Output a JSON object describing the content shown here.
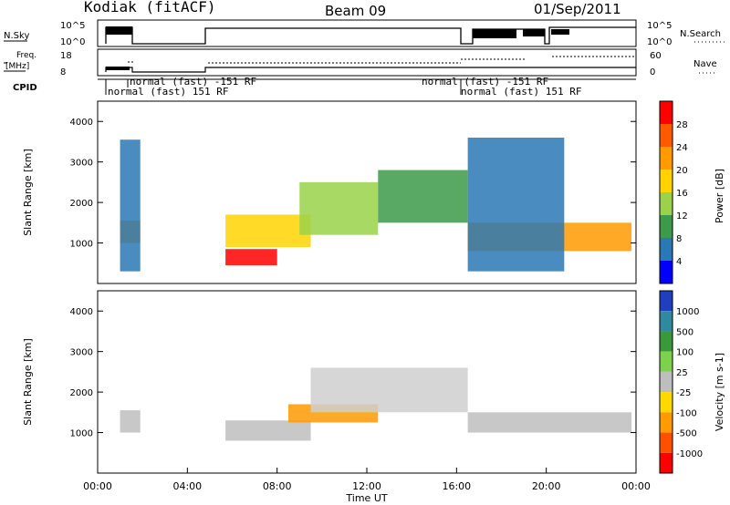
{
  "header": {
    "radar": "Kodiak (fitACF)",
    "beam": "Beam 09",
    "date": "01/Sep/2011"
  },
  "top_panels": {
    "nsky_label": "N.Sky",
    "nsearch_label": "N.Search",
    "nsky_ticks": [
      "10^5",
      "10^0"
    ],
    "nsearch_ticks": [
      "10^5",
      "10^0"
    ],
    "freq_label_1": "Freq.",
    "freq_label_2": "[MHz]",
    "freq_ticks": [
      "18",
      "8"
    ],
    "nave_label": "Nave",
    "nave_ticks": [
      "60",
      "0"
    ],
    "cpid_label": "CPID",
    "cpid_annotations": [
      {
        "text": "normal (fast) -151 RF",
        "row": 1,
        "start_hour": 1.9
      },
      {
        "text": "normal (fast) 151 RF",
        "row": 2,
        "start_hour": 1.2
      },
      {
        "text": "normal (fast) -151 RF",
        "row": 1,
        "start_hour": 16.6
      },
      {
        "text": "normal (fast) 151 RF",
        "row": 2,
        "start_hour": 16.6
      }
    ]
  },
  "chart_data": [
    {
      "type": "heatmap",
      "panel": "power",
      "xlabel": "",
      "ylabel": "Slant Range [km]",
      "xlim": [
        0,
        24
      ],
      "ylim": [
        0,
        4500
      ],
      "yticks": [
        1000,
        2000,
        3000,
        4000
      ],
      "colorbar_label": "Power [dB]",
      "colorbar_ticks": [
        "28",
        "24",
        "20",
        "16",
        "12",
        "8",
        "4"
      ],
      "colorbar_colors": [
        "#ff0000",
        "#ff5a00",
        "#ff9a00",
        "#ffd400",
        "#9ad24a",
        "#3c9a4a",
        "#2a78b4",
        "#0000ff"
      ],
      "regions": [
        {
          "t0": 1.0,
          "t1": 1.9,
          "r0": 1000,
          "r1": 1550,
          "level": 5
        },
        {
          "t0": 1.0,
          "t1": 1.9,
          "r0": 300,
          "r1": 3550,
          "level": 1
        },
        {
          "t0": 5.7,
          "t1": 8.0,
          "r0": 450,
          "r1": 850,
          "level": 7
        },
        {
          "t0": 5.7,
          "t1": 9.5,
          "r0": 900,
          "r1": 1700,
          "level": 4
        },
        {
          "t0": 9.0,
          "t1": 12.5,
          "r0": 1200,
          "r1": 2500,
          "level": 3
        },
        {
          "t0": 12.5,
          "t1": 16.5,
          "r0": 1500,
          "r1": 2800,
          "level": 2
        },
        {
          "t0": 16.5,
          "t1": 23.8,
          "r0": 800,
          "r1": 1500,
          "level": 5
        },
        {
          "t0": 16.5,
          "t1": 20.8,
          "r0": 300,
          "r1": 3600,
          "level": 1
        }
      ]
    },
    {
      "type": "heatmap",
      "panel": "velocity",
      "xlabel": "Time UT",
      "ylabel": "Slant Range [km]",
      "xlim": [
        0,
        24
      ],
      "ylim": [
        0,
        4500
      ],
      "yticks": [
        1000,
        2000,
        3000,
        4000
      ],
      "xticks": [
        "00:00",
        "04:00",
        "08:00",
        "12:00",
        "16:00",
        "20:00",
        "00:00"
      ],
      "colorbar_label": "Velocity [m s-1]",
      "colorbar_ticks": [
        "1000",
        "500",
        "100",
        "25",
        "-25",
        "-100",
        "-500",
        "-1000"
      ],
      "colorbar_colors": [
        "#1f3fbf",
        "#2f8aa0",
        "#3a9a3a",
        "#7cd24a",
        "#bebebe",
        "#ffd800",
        "#ff9a00",
        "#ff5000",
        "#ff0000"
      ],
      "regions": [
        {
          "t0": 1.0,
          "t1": 1.9,
          "r0": 1000,
          "r1": 1550,
          "color": "#bebebe"
        },
        {
          "t0": 5.7,
          "t1": 9.5,
          "r0": 800,
          "r1": 1300,
          "color": "#bebebe"
        },
        {
          "t0": 8.5,
          "t1": 12.5,
          "r0": 1250,
          "r1": 1700,
          "color": "#ff9a00"
        },
        {
          "t0": 9.5,
          "t1": 16.5,
          "r0": 1500,
          "r1": 2600,
          "color": "#cfcfcf"
        },
        {
          "t0": 16.5,
          "t1": 23.8,
          "r0": 1000,
          "r1": 1500,
          "color": "#bebebe"
        }
      ]
    }
  ]
}
